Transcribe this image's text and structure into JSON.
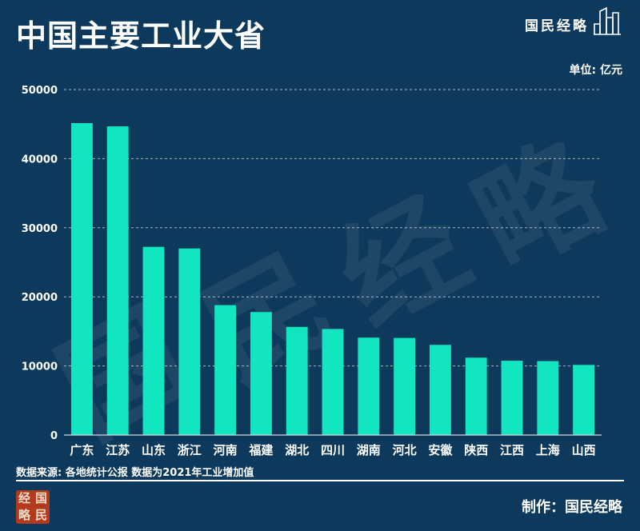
{
  "title": "中国主要工业大省",
  "brand": "国民经略",
  "unit": "单位: 亿元",
  "source": "数据来源: 各地统计公报 数据为2021年工业增加值",
  "credit": "制作：国民经略",
  "seal": [
    "经",
    "国",
    "略",
    "民"
  ],
  "watermark": "国民经略",
  "colors": {
    "background": "#0d3a5c",
    "bar": "#12e6c0",
    "grid": "#cfd8e0"
  },
  "chart_data": {
    "type": "bar",
    "title": "中国主要工业大省",
    "categories": [
      "广东",
      "江苏",
      "山东",
      "浙江",
      "河南",
      "福建",
      "湖北",
      "四川",
      "湖南",
      "河北",
      "安徽",
      "陕西",
      "江西",
      "上海",
      "山西"
    ],
    "values": [
      45142,
      44675,
      27237,
      27000,
      18800,
      17800,
      15650,
      15350,
      14100,
      14050,
      13050,
      11200,
      10750,
      10700,
      10150
    ],
    "ylim": [
      0,
      50000
    ],
    "yticks": [
      0,
      10000,
      20000,
      30000,
      40000,
      50000
    ],
    "ytick_labels": [
      "0",
      "10000",
      "20000",
      "30000",
      "40000",
      "50000"
    ],
    "grid": true,
    "legend": "none"
  }
}
